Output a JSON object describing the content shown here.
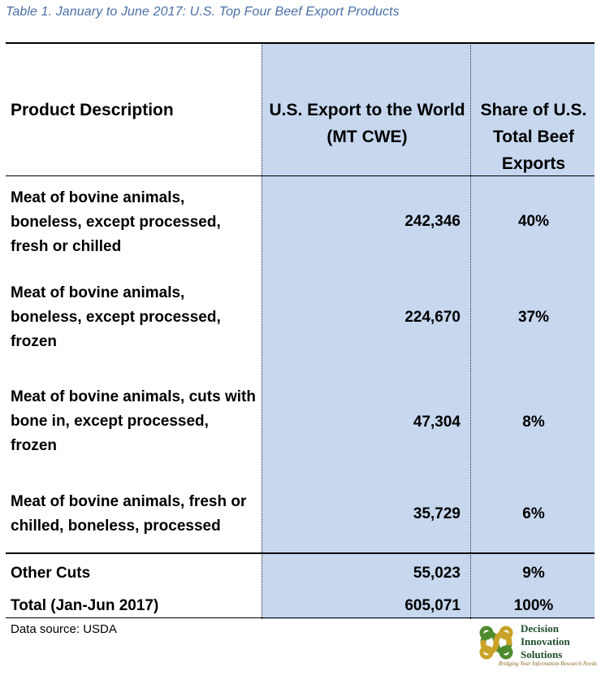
{
  "caption": "Table 1. January to June 2017: U.S. Top Four Beef Export Products",
  "chart_data": {
    "type": "table",
    "columns": [
      "Product Description",
      "U.S. Export to the World\n(MT CWE)",
      "Share of U.S. Total Beef Exports"
    ],
    "rows": [
      {
        "description": "Meat of bovine animals, boneless, except processed, fresh or chilled",
        "export": "242,346",
        "share": "40%"
      },
      {
        "description": "Meat of bovine animals, boneless, except processed, frozen",
        "export": "224,670",
        "share": "37%"
      },
      {
        "description": "Meat of bovine animals, cuts with bone in, except processed, frozen",
        "export": "47,304",
        "share": "8%"
      },
      {
        "description": "Meat of bovine animals, fresh or chilled, boneless, processed",
        "export": "35,729",
        "share": "6%"
      },
      {
        "description": "Other Cuts",
        "export": "55,023",
        "share": "9%"
      },
      {
        "description": "Total (Jan-Jun 2017)",
        "export": "605,071",
        "share": "100%"
      }
    ],
    "values_mt_cwe": [
      242346,
      224670,
      47304,
      35729,
      55023,
      605071
    ],
    "values_share_pct": [
      40,
      37,
      8,
      6,
      9,
      100
    ]
  },
  "source": "Data source: USDA",
  "logo": {
    "name": "Decision\nInnovation\nSolutions",
    "tagline": "Bridging Your Information Research Needs"
  },
  "colors": {
    "highlight": "#c6d7ee",
    "caption": "#4a6fa5",
    "logo_green": "#4e8a2e",
    "logo_gold": "#c9a227"
  }
}
